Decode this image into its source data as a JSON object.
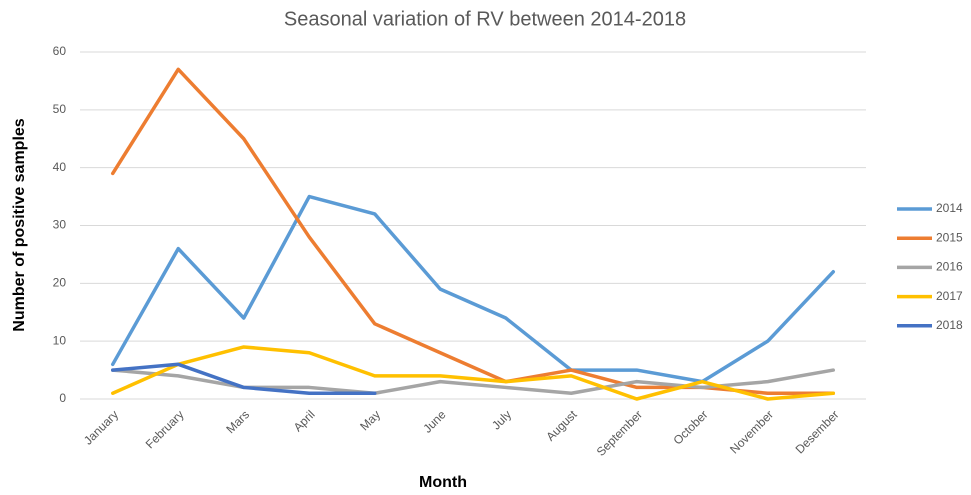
{
  "chart_data": {
    "type": "line",
    "title": "Seasonal variation of RV between 2014-2018",
    "x_label": "Month",
    "y_label": "Number of positive samples",
    "categories": [
      "January",
      "February",
      "Mars",
      "April",
      "May",
      "June",
      "July",
      "August",
      "September",
      "October",
      "November",
      "Desember"
    ],
    "series": [
      {
        "name": "2014",
        "color": "#5b9bd5",
        "values": [
          6,
          26,
          14,
          35,
          32,
          19,
          14,
          5,
          5,
          3,
          10,
          22
        ]
      },
      {
        "name": "2015",
        "color": "#ed7d31",
        "values": [
          39,
          57,
          45,
          28,
          13,
          8,
          3,
          5,
          2,
          2,
          1,
          1
        ]
      },
      {
        "name": "2016",
        "color": "#a5a5a5",
        "values": [
          5,
          4,
          2,
          2,
          1,
          3,
          2,
          1,
          3,
          2,
          3,
          5
        ]
      },
      {
        "name": "2017",
        "color": "#ffc000",
        "values": [
          1,
          6,
          9,
          8,
          4,
          4,
          3,
          4,
          0,
          3,
          0,
          1
        ]
      },
      {
        "name": "2018",
        "color": "#4472c4",
        "values": [
          5,
          6,
          2,
          1,
          1,
          null,
          null,
          null,
          null,
          null,
          null,
          null
        ]
      }
    ],
    "ylim": [
      0,
      60
    ],
    "yticks": [
      0,
      10,
      20,
      30,
      40,
      50,
      60
    ],
    "grid": true,
    "legend": "right"
  }
}
